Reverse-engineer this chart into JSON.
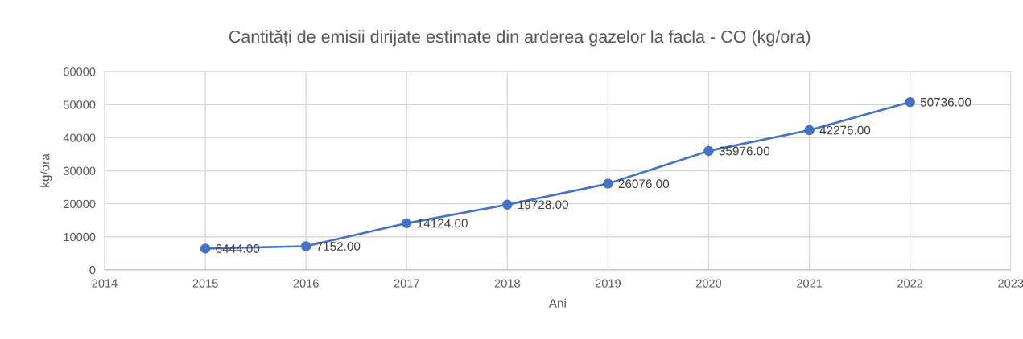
{
  "chart_data": {
    "type": "line",
    "title": "Cantități de emisii dirijate estimate din arderea gazelor la facla - CO (kg/ora)",
    "xlabel": "Ani",
    "ylabel": "kg/ora",
    "x": [
      2015,
      2016,
      2017,
      2018,
      2019,
      2020,
      2021,
      2022
    ],
    "series": [
      {
        "color": "#4472c4",
        "values": [
          6444,
          7152,
          14124,
          19728,
          26076,
          35976,
          42276,
          50736
        ],
        "value_labels": [
          "6444.00",
          "7152.00",
          "14124.00",
          "19728.00",
          "26076.00",
          "35976.00",
          "42276.00",
          "50736.00"
        ]
      }
    ],
    "xlim": [
      2014,
      2023
    ],
    "ylim": [
      0,
      60000
    ],
    "xticks": [
      2014,
      2015,
      2016,
      2017,
      2018,
      2019,
      2020,
      2021,
      2022,
      2023
    ],
    "yticks": [
      0,
      10000,
      20000,
      30000,
      40000,
      50000,
      60000
    ],
    "grid": true,
    "marker": "circle",
    "line_style": "solid"
  }
}
